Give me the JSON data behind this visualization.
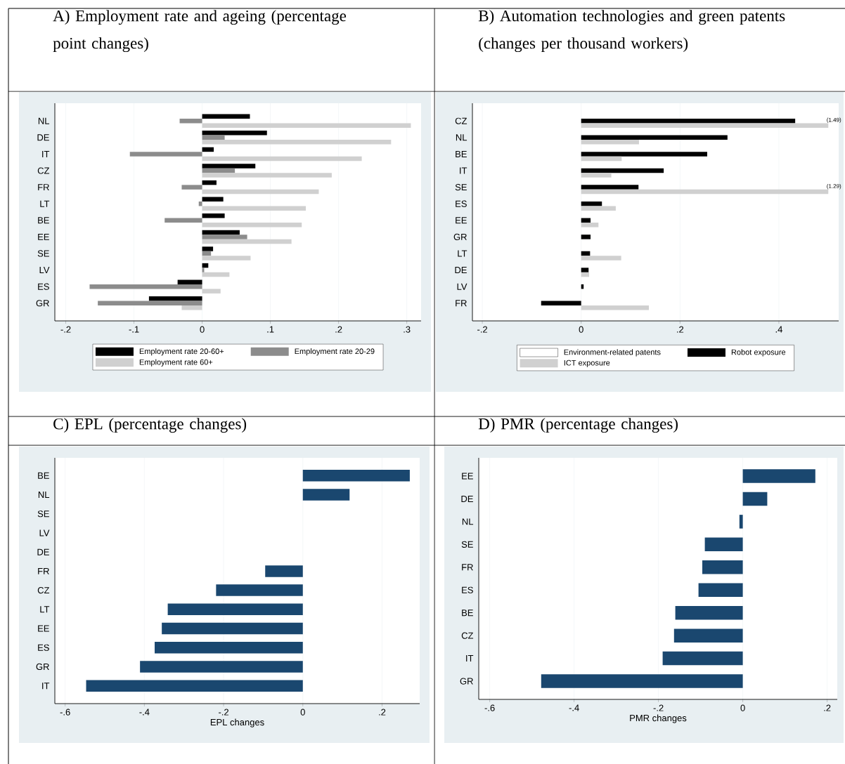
{
  "chart_data": [
    {
      "type": "bar",
      "orientation": "horizontal",
      "title": "A) Employment rate and ageing (percentage point changes)",
      "categories": [
        "NL",
        "DE",
        "IT",
        "CZ",
        "FR",
        "LT",
        "BE",
        "EE",
        "SE",
        "LV",
        "ES",
        "GR"
      ],
      "series": [
        {
          "name": "Employment rate 20-60+",
          "color": "#000000",
          "values": [
            0.07,
            0.095,
            0.017,
            0.078,
            0.021,
            0.031,
            0.033,
            0.055,
            0.016,
            0.009,
            -0.036,
            -0.078
          ]
        },
        {
          "name": "Employment rate 20-29",
          "color": "#8c8c8c",
          "values": [
            -0.033,
            0.033,
            -0.106,
            0.048,
            -0.03,
            -0.005,
            -0.055,
            0.066,
            0.013,
            0.003,
            -0.165,
            -0.153
          ]
        },
        {
          "name": "Employment rate 60+",
          "color": "#d0d0d0",
          "values": [
            0.306,
            0.277,
            0.234,
            0.19,
            0.171,
            0.152,
            0.146,
            0.131,
            0.071,
            0.04,
            0.027,
            -0.03
          ]
        }
      ],
      "xlim": [
        -0.216,
        0.321
      ],
      "xticks": [
        {
          "value": -0.2,
          "label": "-.2"
        },
        {
          "value": -0.1,
          "label": "-.1"
        },
        0,
        {
          "value": 0.1,
          "label": ".1"
        },
        {
          "value": 0.2,
          "label": ".2"
        },
        {
          "value": 0.3,
          "label": ".3"
        }
      ],
      "grid": "x",
      "legend": "bottom"
    },
    {
      "type": "bar",
      "orientation": "horizontal",
      "title": "B) Automation technologies and green patents (changes per thousand workers)",
      "categories": [
        "CZ",
        "NL",
        "BE",
        "IT",
        "SE",
        "ES",
        "EE",
        "GR",
        "LT",
        "DE",
        "LV",
        "FR"
      ],
      "series": [
        {
          "name": "Environment-related patents",
          "color": "#ffffff",
          "values": [
            null,
            null,
            null,
            null,
            null,
            null,
            null,
            null,
            null,
            null,
            null,
            null
          ]
        },
        {
          "name": "Robot exposure",
          "color": "#000000",
          "values": [
            0.433,
            0.296,
            0.255,
            0.167,
            0.116,
            0.042,
            0.019,
            0.019,
            0.018,
            0.015,
            0.005,
            -0.081
          ]
        },
        {
          "name": "ICT exposure",
          "color": "#d0d0d0",
          "values": [
            0.5,
            0.117,
            0.082,
            0.061,
            0.5,
            0.07,
            0.035,
            null,
            0.081,
            0.016,
            null,
            0.137
          ]
        }
      ],
      "annotations": [
        {
          "text": "(1.49)",
          "x": 0.5,
          "y": "CZ"
        },
        {
          "text": "(1.29)",
          "x": 0.5,
          "y": "SE"
        }
      ],
      "xlim": [
        -0.22,
        0.521
      ],
      "xticks": [
        {
          "value": -0.2,
          "label": "-.2"
        },
        0,
        {
          "value": 0.2,
          "label": ".2"
        },
        {
          "value": 0.4,
          "label": ".4"
        }
      ],
      "grid": "x",
      "legend": "bottom"
    },
    {
      "type": "bar",
      "orientation": "horizontal",
      "title": "C) EPL (percentage changes)",
      "xlabel": "EPL changes",
      "categories": [
        "BE",
        "NL",
        "SE",
        "LV",
        "DE",
        "FR",
        "CZ",
        "LT",
        "EE",
        "ES",
        "GR",
        "IT"
      ],
      "values": [
        0.27,
        0.118,
        null,
        null,
        null,
        -0.095,
        -0.219,
        -0.341,
        -0.356,
        -0.374,
        -0.411,
        -0.547
      ],
      "color": "#1a476f",
      "xlim": [
        -0.626,
        0.295
      ],
      "xticks": [
        {
          "value": -0.6,
          "label": "-.6"
        },
        {
          "value": -0.4,
          "label": "-.4"
        },
        {
          "value": -0.2,
          "label": "-.2"
        },
        0,
        {
          "value": 0.2,
          "label": ".2"
        }
      ],
      "grid": "x"
    },
    {
      "type": "bar",
      "orientation": "horizontal",
      "title": "D) PMR (percentage changes)",
      "xlabel": "PMR changes",
      "categories": [
        "EE",
        "DE",
        "NL",
        "SE",
        "FR",
        "ES",
        "BE",
        "CZ",
        "IT",
        "GR"
      ],
      "values": [
        0.172,
        0.058,
        -0.008,
        -0.09,
        -0.096,
        -0.105,
        -0.16,
        -0.163,
        -0.19,
        -0.478
      ],
      "color": "#1a476f",
      "xlim": [
        -0.626,
        0.224
      ],
      "xticks": [
        {
          "value": -0.6,
          "label": "-.6"
        },
        {
          "value": -0.4,
          "label": "-.4"
        },
        {
          "value": -0.2,
          "label": "-.2"
        },
        0,
        {
          "value": 0.2,
          "label": ".2"
        }
      ],
      "grid": "x"
    }
  ]
}
